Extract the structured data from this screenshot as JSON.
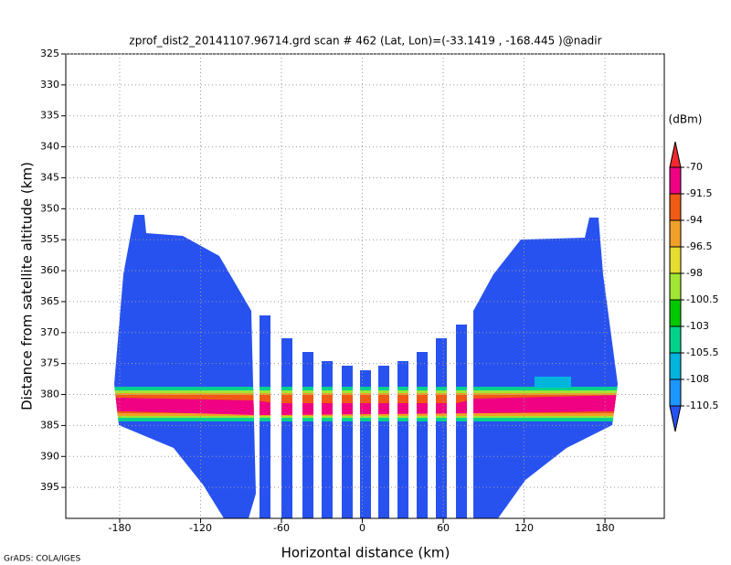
{
  "chart_data": {
    "type": "heatmap",
    "title": "zprof_dist2_20141107.96714.grd  scan # 462  (Lat, Lon)=(-33.1419 , -168.445 )@nadir",
    "x_label": "Horizontal distance (km)",
    "y_label": "Distance from satellite altitude (km)",
    "xlim": [
      -220,
      224
    ],
    "xticks": [
      -180,
      -120,
      -60,
      0,
      60,
      120,
      180
    ],
    "ylim": [
      325,
      400
    ],
    "yreverse": true,
    "yticks": [
      325,
      330,
      335,
      340,
      345,
      350,
      355,
      360,
      365,
      370,
      375,
      380,
      385,
      390,
      395
    ],
    "grid": true,
    "colorbar": {
      "title": "(dBm)",
      "levels": [
        -70,
        -91.5,
        -94,
        -96.5,
        -98,
        -100.5,
        -103,
        -105.5,
        -108,
        -110.5
      ],
      "colors": [
        "#f0282f",
        "#f00082",
        "#f05a14",
        "#f0a028",
        "#e6dc32",
        "#a0e632",
        "#00c800",
        "#00d28c",
        "#00b4dc",
        "#1e96ff",
        "#2852f0"
      ]
    },
    "footer": "GrADS: COLA/IGES"
  }
}
